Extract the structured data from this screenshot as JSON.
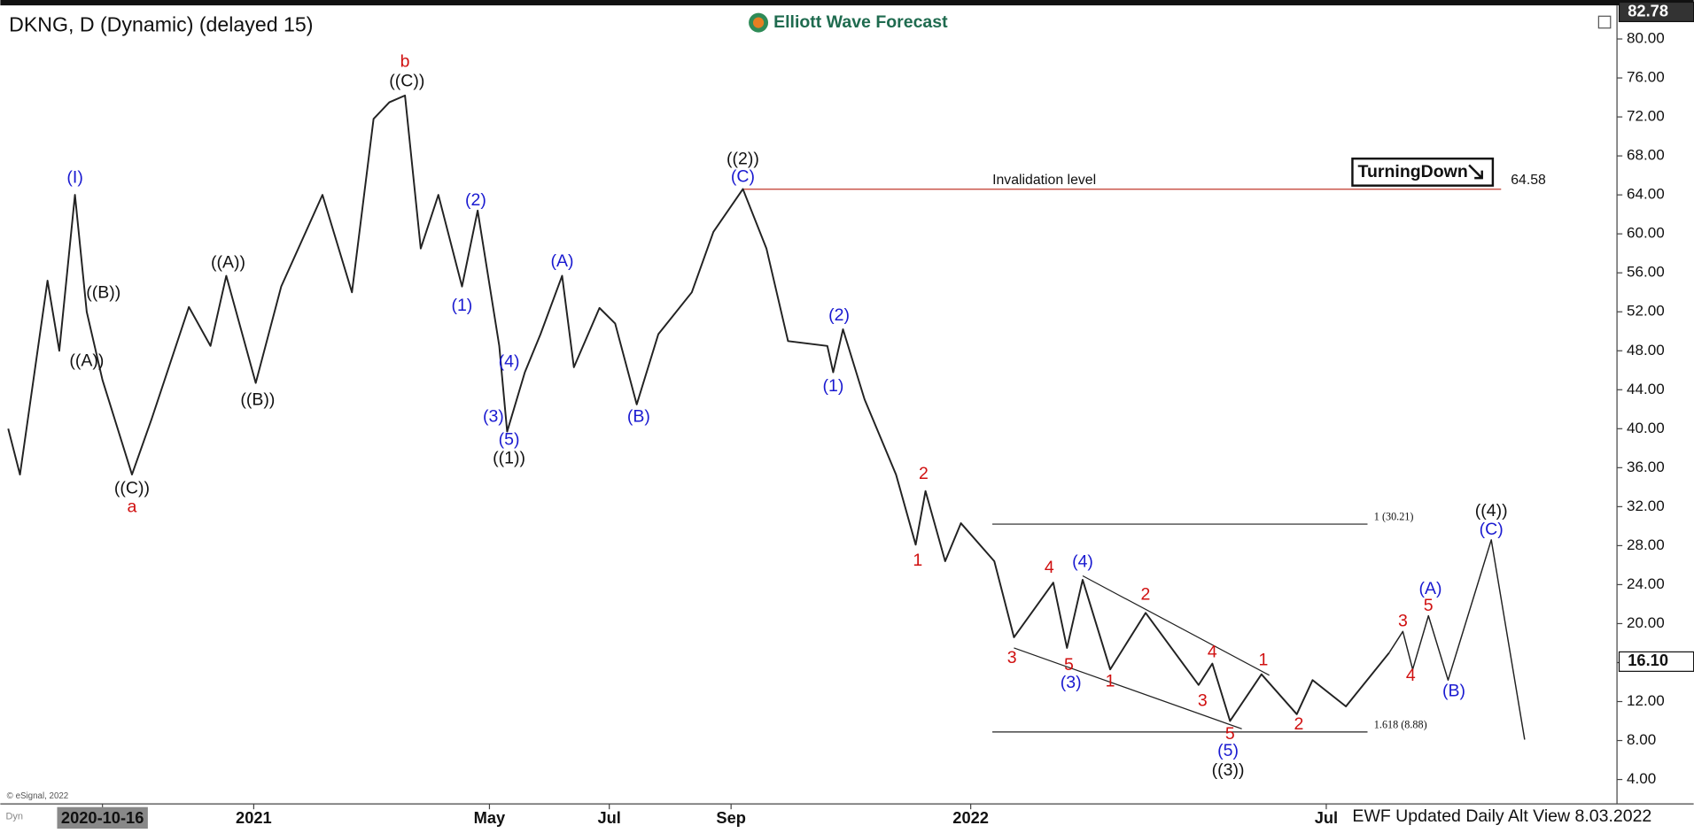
{
  "header": {
    "symbol_line": "DKNG, D (Dynamic) (delayed 15)",
    "brand": "Elliott Wave Forecast",
    "badge": "TurningDown",
    "copyright": "© eSignal, 2022",
    "dyn": "Dyn",
    "footer": "EWF Updated Daily Alt View 8.03.2022"
  },
  "chart_data": {
    "type": "line",
    "xlim": [
      -52,
      771
    ],
    "ylim": [
      1.5,
      84
    ],
    "xticks": [
      {
        "value": 0,
        "label": "2020-10-16"
      },
      {
        "value": 77,
        "label": "2021"
      },
      {
        "value": 197,
        "label": "May"
      },
      {
        "value": 258,
        "label": "Jul"
      },
      {
        "value": 320,
        "label": "Sep"
      },
      {
        "value": 442,
        "label": "2022"
      },
      {
        "value": 623,
        "label": "Jul"
      }
    ],
    "yticks": [
      {
        "value": 4,
        "label": "4.00"
      },
      {
        "value": 8,
        "label": "8.00"
      },
      {
        "value": 12,
        "label": "12.00"
      },
      {
        "value": 16,
        "label": "16.00"
      },
      {
        "value": 20,
        "label": "20.00"
      },
      {
        "value": 24,
        "label": "24.00"
      },
      {
        "value": 28,
        "label": "28.00"
      },
      {
        "value": 32,
        "label": "32.00"
      },
      {
        "value": 36,
        "label": "36.00"
      },
      {
        "value": 40,
        "label": "40.00"
      },
      {
        "value": 44,
        "label": "44.00"
      },
      {
        "value": 48,
        "label": "48.00"
      },
      {
        "value": 52,
        "label": "52.00"
      },
      {
        "value": 56,
        "label": "56.00"
      },
      {
        "value": 60,
        "label": "60.00"
      },
      {
        "value": 64,
        "label": "64.00"
      },
      {
        "value": 68,
        "label": "68.00"
      },
      {
        "value": 72,
        "label": "72.00"
      },
      {
        "value": 76,
        "label": "76.00"
      },
      {
        "value": 80,
        "label": "80.00"
      }
    ],
    "series": [
      {
        "color": "#222222",
        "x": [
          -48,
          -42,
          -28,
          -22,
          -14,
          -8,
          0,
          15,
          25,
          44,
          55,
          63,
          78,
          91,
          112,
          127,
          138,
          146,
          154,
          162,
          171,
          183,
          191,
          202,
          206,
          215,
          223,
          234,
          240,
          253,
          261,
          272,
          283,
          300,
          311,
          326,
          338,
          349,
          369,
          372,
          377,
          388,
          404,
          414,
          419,
          429,
          437,
          454,
          464,
          484,
          491,
          499,
          513,
          531,
          558,
          565,
          574,
          590,
          608,
          616,
          633,
          655
        ],
        "values": [
          40,
          35.3,
          55.2,
          48,
          64,
          52,
          45,
          35.3,
          41,
          52.5,
          48.5,
          55.7,
          44.7,
          54.6,
          64,
          54,
          71.8,
          73.5,
          74.2,
          58.5,
          64,
          54.6,
          62.4,
          48.5,
          39.7,
          45.8,
          49.7,
          55.7,
          46.3,
          52.4,
          50.8,
          42.5,
          49.7,
          54,
          60.2,
          64.6,
          58.5,
          49,
          48.5,
          45.8,
          50.2,
          43,
          35.3,
          28.1,
          33.6,
          26.4,
          30.3,
          26.4,
          18.6,
          24.2,
          17.5,
          24.5,
          15.3,
          21.1,
          13.7,
          15.9,
          10,
          14.8,
          10.7,
          14.2,
          11.5,
          17
        ]
      },
      {
        "color": "#222222",
        "x": [
          655,
          662,
          667,
          675,
          685,
          707,
          724
        ],
        "values": [
          17,
          19.2,
          15.3,
          20.8,
          14.2,
          28.6,
          8.1
        ]
      }
    ],
    "trendlines": [
      {
        "color": "#222222",
        "x": [
          464,
          580
        ],
        "values": [
          17.5,
          9.2
        ]
      },
      {
        "color": "#222222",
        "x": [
          499,
          594
        ],
        "values": [
          24.9,
          14.7
        ]
      }
    ],
    "invalidation": {
      "value": 64.58,
      "label": "Invalidation level",
      "color": "#c0392b",
      "x": [
        326,
        712
      ]
    },
    "fib_levels": [
      {
        "value": 30.21,
        "value_label": "1 (30.21)",
        "color": "#222222",
        "x": [
          453,
          644
        ]
      },
      {
        "value": 8.88,
        "value_label": "1.618 (8.88)",
        "color": "#222222",
        "x": [
          453,
          644
        ]
      }
    ],
    "high_price": {
      "value": 82.78,
      "label": "82.78"
    },
    "last_price": {
      "value": 16.1,
      "label": "16.10"
    },
    "annotations": [
      {
        "text": "(I)",
        "x": -14,
        "y": 65.7,
        "color": "#1a1ad0",
        "large": true
      },
      {
        "text": "((B))",
        "x": 0.5,
        "y": 53.9,
        "color": "#111111"
      },
      {
        "text": "((A))",
        "x": -8,
        "y": 46.9,
        "color": "#111111"
      },
      {
        "text": "((C))",
        "x": 15,
        "y": 33.8,
        "color": "#111111"
      },
      {
        "text": "a",
        "x": 15,
        "y": 31.9,
        "color": "#d01010",
        "large": true
      },
      {
        "text": "((A))",
        "x": 64,
        "y": 57,
        "color": "#111111"
      },
      {
        "text": "((B))",
        "x": 79,
        "y": 42.9,
        "color": "#111111"
      },
      {
        "text": "b",
        "x": 154,
        "y": 77.6,
        "color": "#d01010",
        "large": true
      },
      {
        "text": "((C))",
        "x": 155,
        "y": 75.6,
        "color": "#111111"
      },
      {
        "text": "(1)",
        "x": 183,
        "y": 52.6,
        "color": "#1a1ad0"
      },
      {
        "text": "(2)",
        "x": 190,
        "y": 63.4,
        "color": "#1a1ad0"
      },
      {
        "text": "(4)",
        "x": 207,
        "y": 46.8,
        "color": "#1a1ad0"
      },
      {
        "text": "(3)",
        "x": 199,
        "y": 41.2,
        "color": "#1a1ad0"
      },
      {
        "text": "(5)",
        "x": 207,
        "y": 38.8,
        "color": "#1a1ad0"
      },
      {
        "text": "((1))",
        "x": 207,
        "y": 36.9,
        "color": "#111111"
      },
      {
        "text": "(A)",
        "x": 234,
        "y": 57.1,
        "color": "#1a1ad0"
      },
      {
        "text": "(B)",
        "x": 273,
        "y": 41.2,
        "color": "#1a1ad0"
      },
      {
        "text": "((2))",
        "x": 326,
        "y": 67.6,
        "color": "#111111"
      },
      {
        "text": "(C)",
        "x": 326,
        "y": 65.8,
        "color": "#1a1ad0"
      },
      {
        "text": "(2)",
        "x": 375,
        "y": 51.6,
        "color": "#1a1ad0"
      },
      {
        "text": "(1)",
        "x": 372,
        "y": 44.3,
        "color": "#1a1ad0"
      },
      {
        "text": "2",
        "x": 418,
        "y": 35.3,
        "color": "#d01010"
      },
      {
        "text": "1",
        "x": 415,
        "y": 26.4,
        "color": "#d01010"
      },
      {
        "text": "4",
        "x": 482,
        "y": 25.7,
        "color": "#d01010"
      },
      {
        "text": "(4)",
        "x": 499,
        "y": 26.3,
        "color": "#1a1ad0"
      },
      {
        "text": "3",
        "x": 463,
        "y": 16.4,
        "color": "#d01010"
      },
      {
        "text": "5",
        "x": 492,
        "y": 15.7,
        "color": "#d01010"
      },
      {
        "text": "(3)",
        "x": 493,
        "y": 13.9,
        "color": "#1a1ad0"
      },
      {
        "text": "1",
        "x": 513,
        "y": 14,
        "color": "#d01010"
      },
      {
        "text": "2",
        "x": 531,
        "y": 22.9,
        "color": "#d01010"
      },
      {
        "text": "4",
        "x": 565,
        "y": 17,
        "color": "#d01010"
      },
      {
        "text": "3",
        "x": 560,
        "y": 12,
        "color": "#d01010"
      },
      {
        "text": "1",
        "x": 591,
        "y": 16.2,
        "color": "#d01010"
      },
      {
        "text": "5",
        "x": 574,
        "y": 8.6,
        "color": "#d01010"
      },
      {
        "text": "(5)",
        "x": 573,
        "y": 6.9,
        "color": "#1a1ad0"
      },
      {
        "text": "((3))",
        "x": 573,
        "y": 4.9,
        "color": "#111111"
      },
      {
        "text": "2",
        "x": 609,
        "y": 9.6,
        "color": "#d01010"
      },
      {
        "text": "3",
        "x": 662,
        "y": 20.2,
        "color": "#d01010"
      },
      {
        "text": "4",
        "x": 666,
        "y": 14.6,
        "color": "#d01010"
      },
      {
        "text": "5",
        "x": 675,
        "y": 21.8,
        "color": "#d01010"
      },
      {
        "text": "(A)",
        "x": 676,
        "y": 23.5,
        "color": "#1a1ad0"
      },
      {
        "text": "(B)",
        "x": 688,
        "y": 13,
        "color": "#1a1ad0"
      },
      {
        "text": "((4))",
        "x": 707,
        "y": 31.5,
        "color": "#111111"
      },
      {
        "text": "(C)",
        "x": 707,
        "y": 29.6,
        "color": "#1a1ad0"
      }
    ]
  }
}
